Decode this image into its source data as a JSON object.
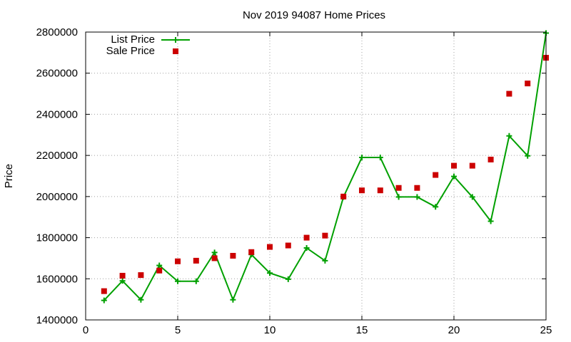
{
  "chart_data": {
    "type": "line",
    "title": "Nov 2019 94087 Home Prices",
    "xlabel": "",
    "ylabel": "Price",
    "xlim": [
      0,
      25
    ],
    "ylim": [
      1400000,
      2800000
    ],
    "x_ticks": [
      0,
      5,
      10,
      15,
      20,
      25
    ],
    "y_ticks": [
      1400000,
      1600000,
      1800000,
      2000000,
      2200000,
      2400000,
      2600000,
      2800000
    ],
    "grid": true,
    "legend_position": "top-left",
    "series": [
      {
        "name": "List Price",
        "style": "line-with-plus-markers",
        "color": "#00a000",
        "x": [
          1,
          2,
          3,
          4,
          5,
          6,
          7,
          8,
          9,
          10,
          11,
          12,
          13,
          14,
          15,
          16,
          17,
          18,
          19,
          20,
          21,
          22,
          23,
          24,
          25
        ],
        "y": [
          1495000,
          1590000,
          1498000,
          1665000,
          1588000,
          1588000,
          1728000,
          1498000,
          1718000,
          1628000,
          1598000,
          1750000,
          1688000,
          1998000,
          2190000,
          2190000,
          1998000,
          1998000,
          1950000,
          2098000,
          1998000,
          1880000,
          2295000,
          2198000,
          2795000
        ]
      },
      {
        "name": "Sale Price",
        "style": "square-markers",
        "color": "#cc0000",
        "x": [
          1,
          2,
          3,
          4,
          5,
          6,
          7,
          8,
          9,
          10,
          11,
          12,
          13,
          14,
          15,
          16,
          17,
          18,
          19,
          20,
          21,
          22,
          23,
          24,
          25
        ],
        "y": [
          1540000,
          1615000,
          1618000,
          1640000,
          1685000,
          1688000,
          1700000,
          1712000,
          1730000,
          1755000,
          1762000,
          1800000,
          1810000,
          2000000,
          2030000,
          2030000,
          2042000,
          2042000,
          2105000,
          2150000,
          2150000,
          2180000,
          2500000,
          2550000,
          2675000
        ]
      }
    ]
  }
}
